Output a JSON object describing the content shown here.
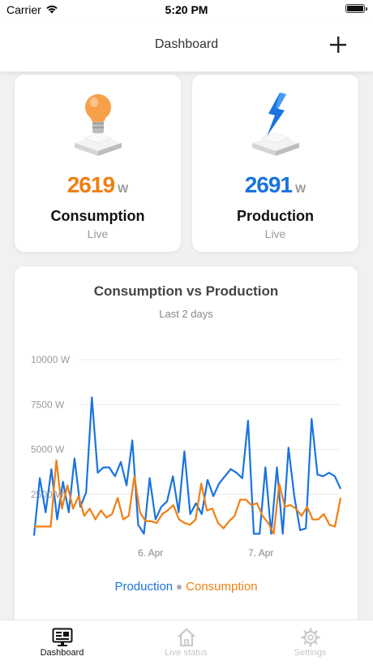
{
  "status_bar": {
    "carrier": "Carrier",
    "time": "5:20 PM"
  },
  "nav": {
    "title": "Dashboard"
  },
  "cards": {
    "consumption": {
      "value": "2619",
      "unit": "W",
      "label": "Consumption",
      "sub": "Live"
    },
    "production": {
      "value": "2691",
      "unit": "W",
      "label": "Production",
      "sub": "Live"
    }
  },
  "chart": {
    "title": "Consumption vs Production",
    "subtitle": "Last 2 days"
  },
  "chart_data": {
    "type": "line",
    "title": "Consumption vs Production",
    "subtitle": "Last 2 days",
    "xlabel": "",
    "ylabel": "",
    "ylim": [
      0,
      10000
    ],
    "y_ticks": [
      "10000 W",
      "7500 W",
      "5000 W",
      "2500 W"
    ],
    "y_tick_values": [
      10000,
      7500,
      5000,
      2500
    ],
    "x_ticks": [
      "6. Apr",
      "7. Apr"
    ],
    "x_tick_positions": [
      19,
      37
    ],
    "x_range": [
      0,
      50
    ],
    "grid": true,
    "legend_position": "bottom",
    "series": [
      {
        "name": "Production",
        "color": "#1a73e0",
        "values": [
          200,
          3400,
          1500,
          3900,
          1100,
          3200,
          1500,
          4500,
          1800,
          2600,
          7900,
          3700,
          4000,
          4000,
          3500,
          4300,
          3000,
          5500,
          800,
          300,
          3400,
          1100,
          1800,
          2100,
          3500,
          1500,
          4900,
          1400,
          2000,
          1400,
          3300,
          2400,
          3100,
          3500,
          3900,
          3700,
          3400,
          6600,
          300,
          300,
          4000,
          300,
          4000,
          300,
          5100,
          2400,
          500,
          600,
          6700,
          3600,
          3500,
          3700,
          3500,
          2800
        ]
      },
      {
        "name": "Consumption",
        "color": "#f07f12",
        "values": [
          700,
          700,
          700,
          700,
          4400,
          1700,
          3000,
          1700,
          2400,
          1300,
          1700,
          1100,
          1600,
          1200,
          1400,
          2300,
          1100,
          1300,
          3500,
          1500,
          1000,
          1000,
          900,
          1400,
          1600,
          1900,
          1100,
          900,
          800,
          1100,
          3100,
          1600,
          1700,
          900,
          600,
          1000,
          1300,
          2200,
          2200,
          1900,
          2000,
          1300,
          900,
          300,
          3100,
          1800,
          1900,
          1700,
          1300,
          1800,
          1100,
          1100,
          1400,
          800,
          700,
          2300
        ]
      }
    ]
  },
  "tabs": [
    {
      "label": "Dashboard",
      "icon": "dashboard-icon",
      "active": true
    },
    {
      "label": "Live status",
      "icon": "home-icon",
      "active": false
    },
    {
      "label": "Settings",
      "icon": "gear-icon",
      "active": false
    }
  ],
  "colors": {
    "production": "#1a73e0",
    "consumption": "#f07f12",
    "tab_active": "#111111",
    "tab_inactive": "#c7c7cc"
  }
}
